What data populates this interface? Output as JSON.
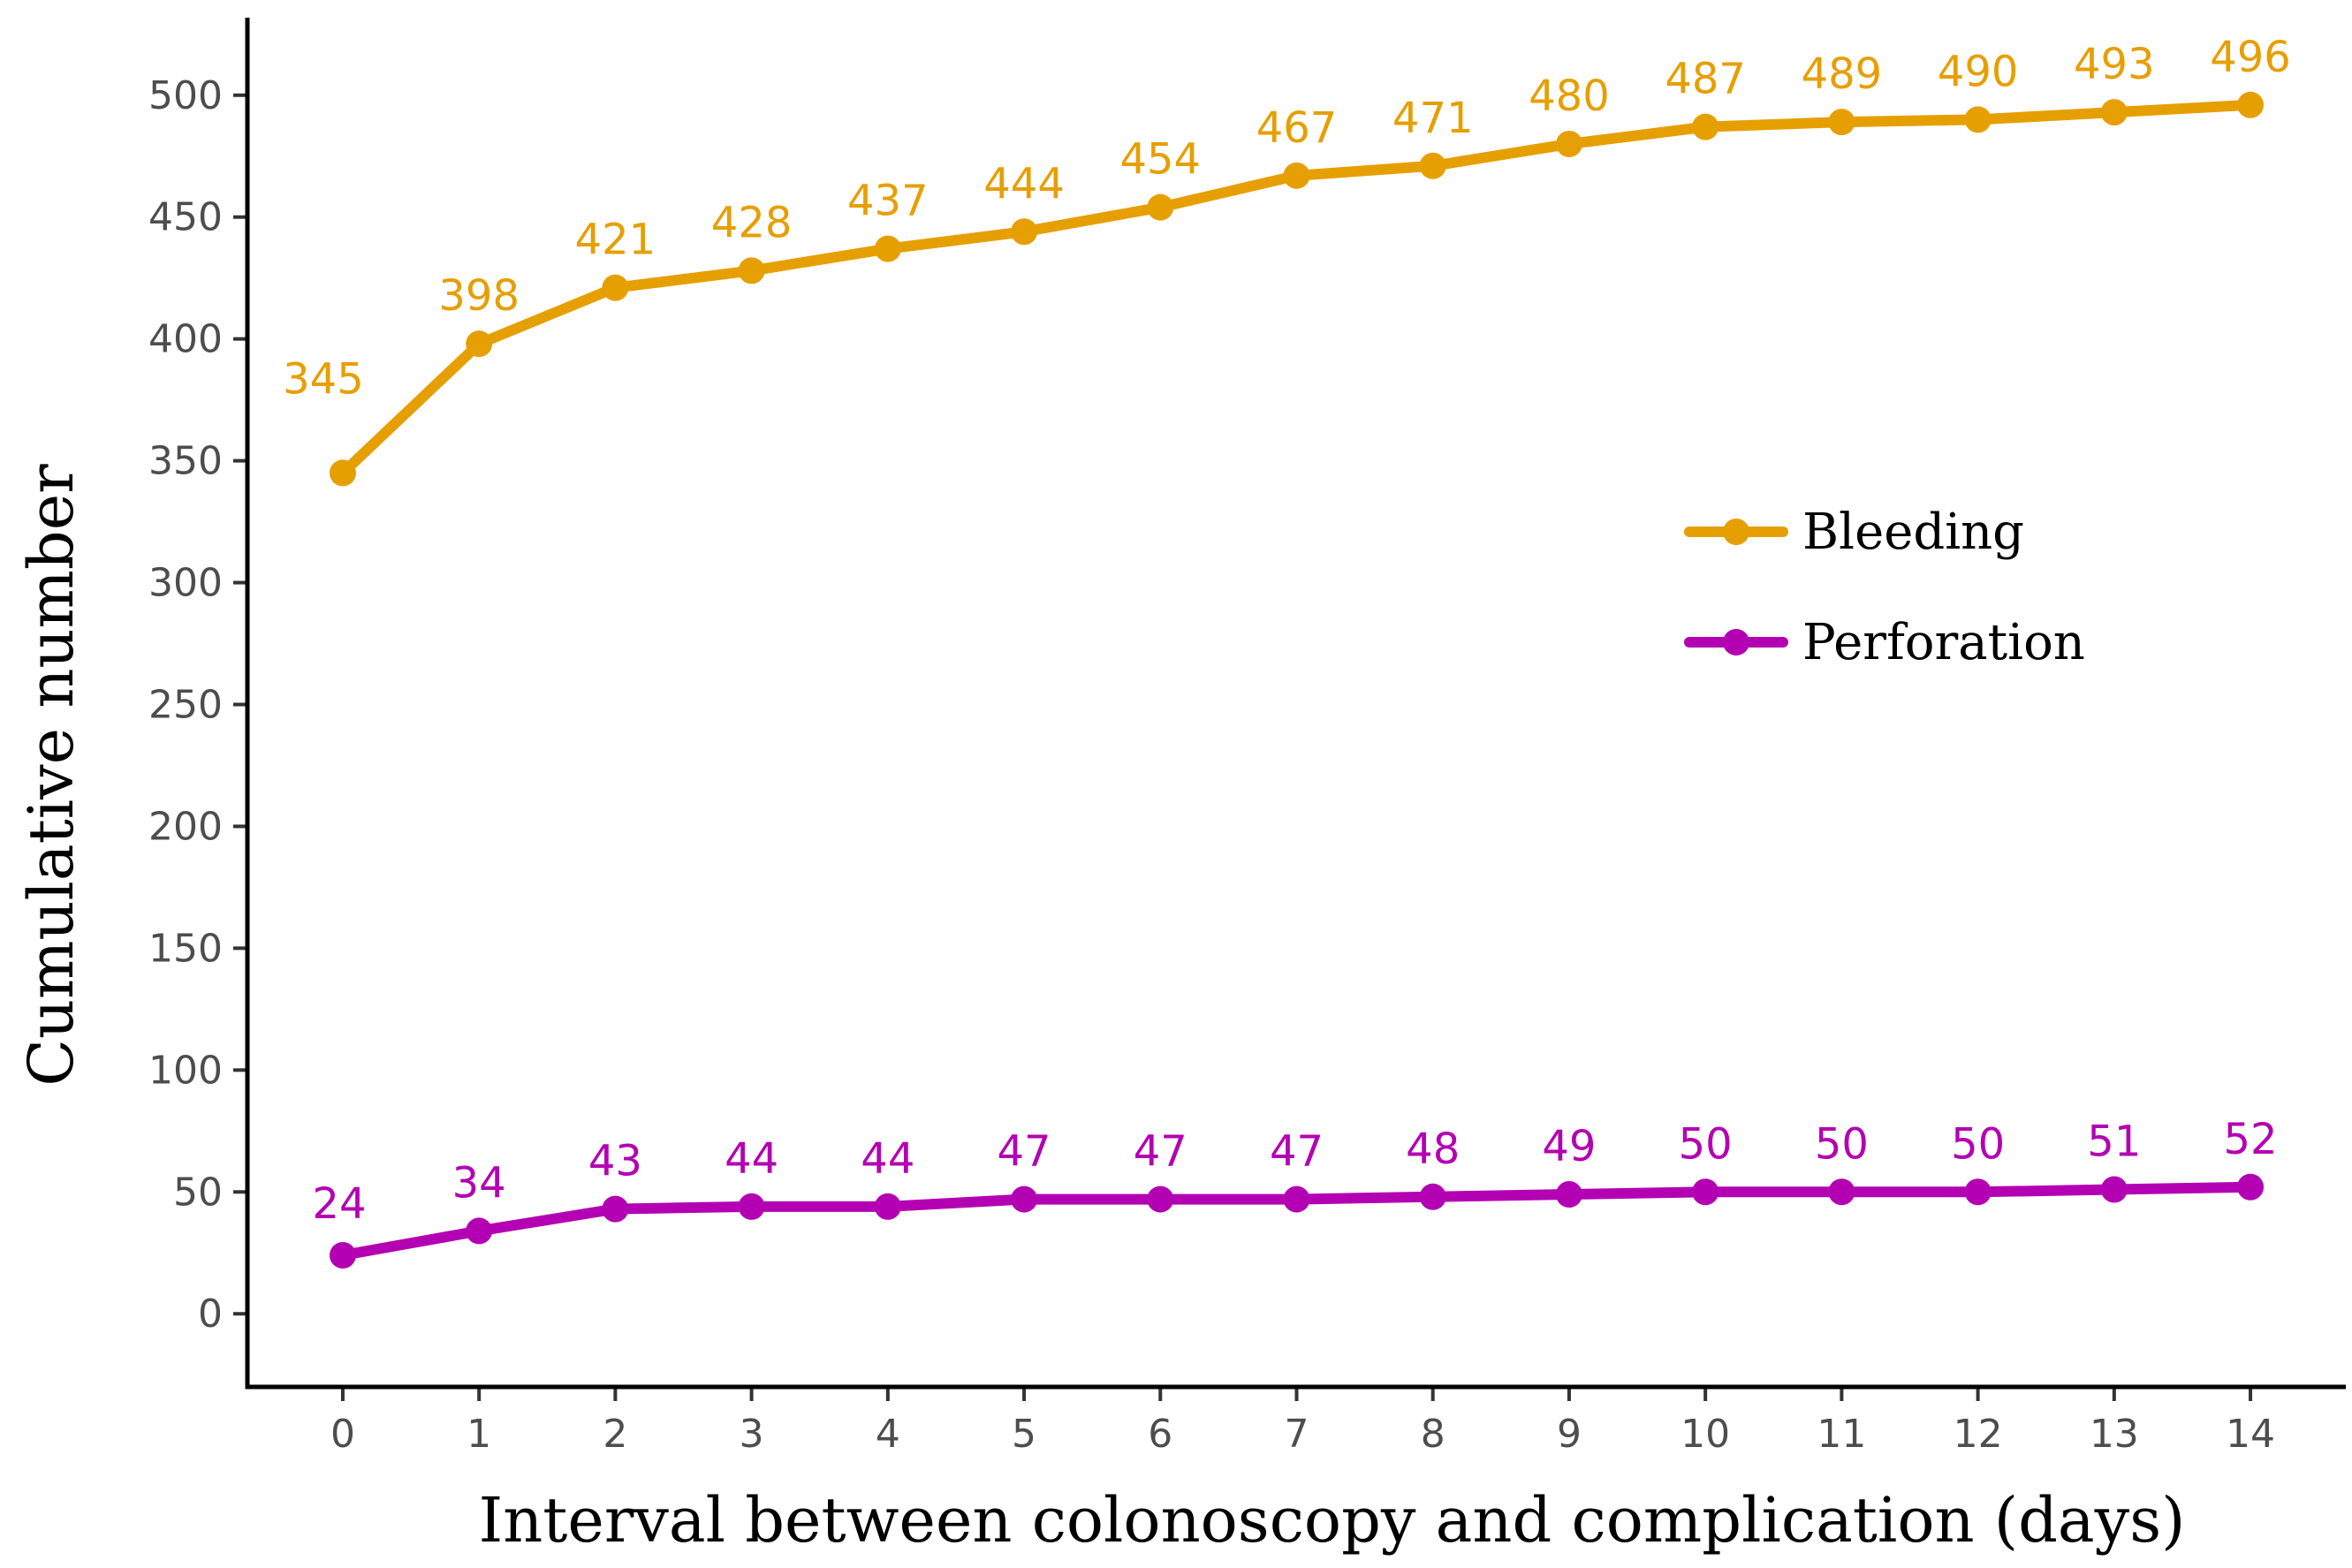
{
  "chart_data": {
    "type": "line",
    "title": "",
    "xlabel": "Interval between colonoscopy and complication (days)",
    "ylabel": "Cumulative number",
    "x": [
      0,
      1,
      2,
      3,
      4,
      5,
      6,
      7,
      8,
      9,
      10,
      11,
      12,
      13,
      14
    ],
    "xticks": [
      "0",
      "1",
      "2",
      "3",
      "4",
      "5",
      "6",
      "7",
      "8",
      "9",
      "10",
      "11",
      "12",
      "13",
      "14"
    ],
    "yticks": [
      "0",
      "50",
      "100",
      "150",
      "200",
      "250",
      "300",
      "350",
      "400",
      "450",
      "500"
    ],
    "ylim": [
      -30,
      530
    ],
    "xlim": [
      -0.7,
      14.7
    ],
    "grid": false,
    "legend_position": "right-middle",
    "series": [
      {
        "name": "Bleeding",
        "color": "#E69F00",
        "values": [
          345,
          398,
          421,
          428,
          437,
          444,
          454,
          467,
          471,
          480,
          487,
          489,
          490,
          493,
          496
        ],
        "labels": [
          "345",
          "398",
          "421",
          "428",
          "437",
          "444",
          "454",
          "467",
          "471",
          "480",
          "487",
          "489",
          "490",
          "493",
          "496"
        ]
      },
      {
        "name": "Perforation",
        "color": "#B300B3",
        "values": [
          24,
          34,
          43,
          44,
          44,
          47,
          47,
          47,
          48,
          49,
          50,
          50,
          50,
          51,
          52
        ],
        "labels": [
          "24",
          "34",
          "43",
          "44",
          "44",
          "47",
          "47",
          "47",
          "48",
          "49",
          "50",
          "50",
          "50",
          "51",
          "52"
        ]
      }
    ]
  }
}
